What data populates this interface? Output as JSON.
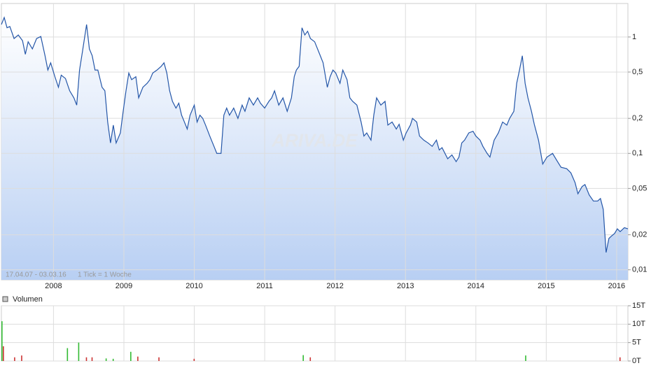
{
  "chart_data": [
    {
      "type": "line",
      "log_y": true,
      "grid": true,
      "color": "#2456a8",
      "watermark": "ARIVA.DE",
      "annotations": [
        "17.04.07 - 03.03.16",
        "1 Tick = 1 Woche"
      ],
      "xlim": [
        2007.26,
        2016.16
      ],
      "xticks": [
        2008,
        2009,
        2010,
        2011,
        2012,
        2013,
        2014,
        2015,
        2016
      ],
      "ylim": [
        0.0082,
        1.94
      ],
      "yticks": [
        {
          "value": 0.01,
          "label": "0,01"
        },
        {
          "value": 0.02,
          "label": "0,02"
        },
        {
          "value": 0.05,
          "label": "0,05"
        },
        {
          "value": 0.1,
          "label": "0,1"
        },
        {
          "value": 0.2,
          "label": "0,2"
        },
        {
          "value": 0.5,
          "label": "0,5"
        },
        1
      ],
      "x": [
        2007.26,
        2007.3,
        2007.34,
        2007.38,
        2007.44,
        2007.5,
        2007.56,
        2007.6,
        2007.64,
        2007.7,
        2007.76,
        2007.82,
        2007.88,
        2007.92,
        2007.96,
        2008.02,
        2008.07,
        2008.11,
        2008.17,
        2008.23,
        2008.29,
        2008.33,
        2008.37,
        2008.41,
        2008.47,
        2008.51,
        2008.55,
        2008.59,
        2008.63,
        2008.69,
        2008.73,
        2008.77,
        2008.81,
        2008.85,
        2008.89,
        2008.95,
        2008.99,
        2009.03,
        2009.07,
        2009.11,
        2009.17,
        2009.21,
        2009.27,
        2009.33,
        2009.37,
        2009.41,
        2009.47,
        2009.53,
        2009.57,
        2009.61,
        2009.65,
        2009.69,
        2009.74,
        2009.78,
        2009.82,
        2009.86,
        2009.9,
        2009.94,
        2010.0,
        2010.04,
        2010.08,
        2010.12,
        2010.16,
        2010.22,
        2010.28,
        2010.32,
        2010.38,
        2010.42,
        2010.46,
        2010.5,
        2010.56,
        2010.62,
        2010.68,
        2010.72,
        2010.78,
        2010.84,
        2010.9,
        2010.94,
        2011.0,
        2011.06,
        2011.1,
        2011.14,
        2011.2,
        2011.26,
        2011.32,
        2011.38,
        2011.42,
        2011.45,
        2011.49,
        2011.53,
        2011.57,
        2011.61,
        2011.65,
        2011.71,
        2011.77,
        2011.83,
        2011.89,
        2011.93,
        2011.97,
        2012.01,
        2012.07,
        2012.11,
        2012.17,
        2012.21,
        2012.25,
        2012.31,
        2012.37,
        2012.41,
        2012.45,
        2012.51,
        2012.55,
        2012.59,
        2012.65,
        2012.71,
        2012.75,
        2012.81,
        2012.87,
        2012.91,
        2012.97,
        2013.01,
        2013.07,
        2013.1,
        2013.16,
        2013.2,
        2013.26,
        2013.32,
        2013.38,
        2013.44,
        2013.48,
        2013.52,
        2013.6,
        2013.66,
        2013.72,
        2013.76,
        2013.8,
        2013.84,
        2013.9,
        2013.96,
        2014.0,
        2014.06,
        2014.1,
        2014.16,
        2014.2,
        2014.26,
        2014.32,
        2014.38,
        2014.44,
        2014.48,
        2014.54,
        2014.58,
        2014.62,
        2014.66,
        2014.7,
        2014.74,
        2014.79,
        2014.83,
        2014.89,
        2014.95,
        2015.01,
        2015.09,
        2015.15,
        2015.21,
        2015.29,
        2015.35,
        2015.41,
        2015.45,
        2015.51,
        2015.55,
        2015.61,
        2015.67,
        2015.73,
        2015.77,
        2015.81,
        2015.85,
        2015.89,
        2015.93,
        2015.97,
        2016.01,
        2016.05,
        2016.11,
        2016.16
      ],
      "values": [
        1.28,
        1.47,
        1.2,
        1.23,
        0.97,
        1.04,
        0.93,
        0.71,
        0.91,
        0.79,
        0.97,
        1.01,
        0.69,
        0.52,
        0.6,
        0.456,
        0.37,
        0.47,
        0.44,
        0.345,
        0.3,
        0.26,
        0.52,
        0.74,
        1.28,
        0.79,
        0.69,
        0.52,
        0.52,
        0.37,
        0.345,
        0.186,
        0.123,
        0.175,
        0.123,
        0.15,
        0.23,
        0.345,
        0.49,
        0.43,
        0.456,
        0.3,
        0.37,
        0.4,
        0.43,
        0.49,
        0.52,
        0.56,
        0.6,
        0.49,
        0.345,
        0.28,
        0.245,
        0.27,
        0.213,
        0.186,
        0.162,
        0.213,
        0.26,
        0.186,
        0.213,
        0.2,
        0.175,
        0.141,
        0.115,
        0.1,
        0.1,
        0.213,
        0.245,
        0.213,
        0.245,
        0.2,
        0.26,
        0.23,
        0.3,
        0.26,
        0.3,
        0.27,
        0.245,
        0.28,
        0.3,
        0.345,
        0.26,
        0.3,
        0.23,
        0.3,
        0.456,
        0.52,
        0.56,
        1.2,
        1.04,
        1.12,
        0.97,
        0.91,
        0.74,
        0.6,
        0.37,
        0.456,
        0.52,
        0.49,
        0.4,
        0.52,
        0.43,
        0.3,
        0.28,
        0.26,
        0.186,
        0.141,
        0.15,
        0.13,
        0.213,
        0.3,
        0.26,
        0.28,
        0.175,
        0.186,
        0.162,
        0.178,
        0.13,
        0.15,
        0.175,
        0.2,
        0.186,
        0.141,
        0.13,
        0.123,
        0.115,
        0.13,
        0.107,
        0.112,
        0.09,
        0.097,
        0.085,
        0.093,
        0.123,
        0.13,
        0.15,
        0.155,
        0.141,
        0.13,
        0.115,
        0.1,
        0.093,
        0.13,
        0.15,
        0.186,
        0.175,
        0.2,
        0.23,
        0.4,
        0.52,
        0.69,
        0.4,
        0.3,
        0.23,
        0.178,
        0.13,
        0.081,
        0.093,
        0.1,
        0.087,
        0.076,
        0.074,
        0.068,
        0.056,
        0.045,
        0.052,
        0.054,
        0.044,
        0.039,
        0.039,
        0.041,
        0.033,
        0.0141,
        0.0186,
        0.0196,
        0.0205,
        0.0225,
        0.0213,
        0.023,
        0.0225
      ]
    },
    {
      "type": "bar",
      "title": "Volumen",
      "grid": true,
      "xlim": [
        2007.26,
        2016.16
      ],
      "xticks": [
        2008,
        2009,
        2010,
        2011,
        2012,
        2013,
        2014,
        2015,
        2016
      ],
      "ylim": [
        0,
        15
      ],
      "yticks": [
        {
          "value": 0,
          "label": "0T"
        },
        {
          "value": 5,
          "label": "5T"
        },
        {
          "value": 10,
          "label": "10T"
        },
        {
          "value": 15,
          "label": "15T"
        }
      ],
      "x": [
        2007.27,
        2007.29,
        2007.45,
        2007.55,
        2008.2,
        2008.36,
        2008.47,
        2008.55,
        2008.75,
        2008.85,
        2009.1,
        2009.2,
        2009.5,
        2010.0,
        2011.55,
        2011.65,
        2014.71,
        2016.05
      ],
      "values": [
        10.8,
        4,
        1,
        1.5,
        3.5,
        5,
        1,
        1,
        0.7,
        0.6,
        2.5,
        1.2,
        1,
        0.6,
        1.6,
        1,
        1.5,
        1
      ],
      "colors": [
        "#33bb33",
        "#cc3333",
        "#cc3333",
        "#cc3333",
        "#33bb33",
        "#33bb33",
        "#cc3333",
        "#cc3333",
        "#33bb33",
        "#33bb33",
        "#33bb33",
        "#cc3333",
        "#cc3333",
        "#cc3333",
        "#33bb33",
        "#cc3333",
        "#33bb33",
        "#cc3333"
      ]
    }
  ]
}
